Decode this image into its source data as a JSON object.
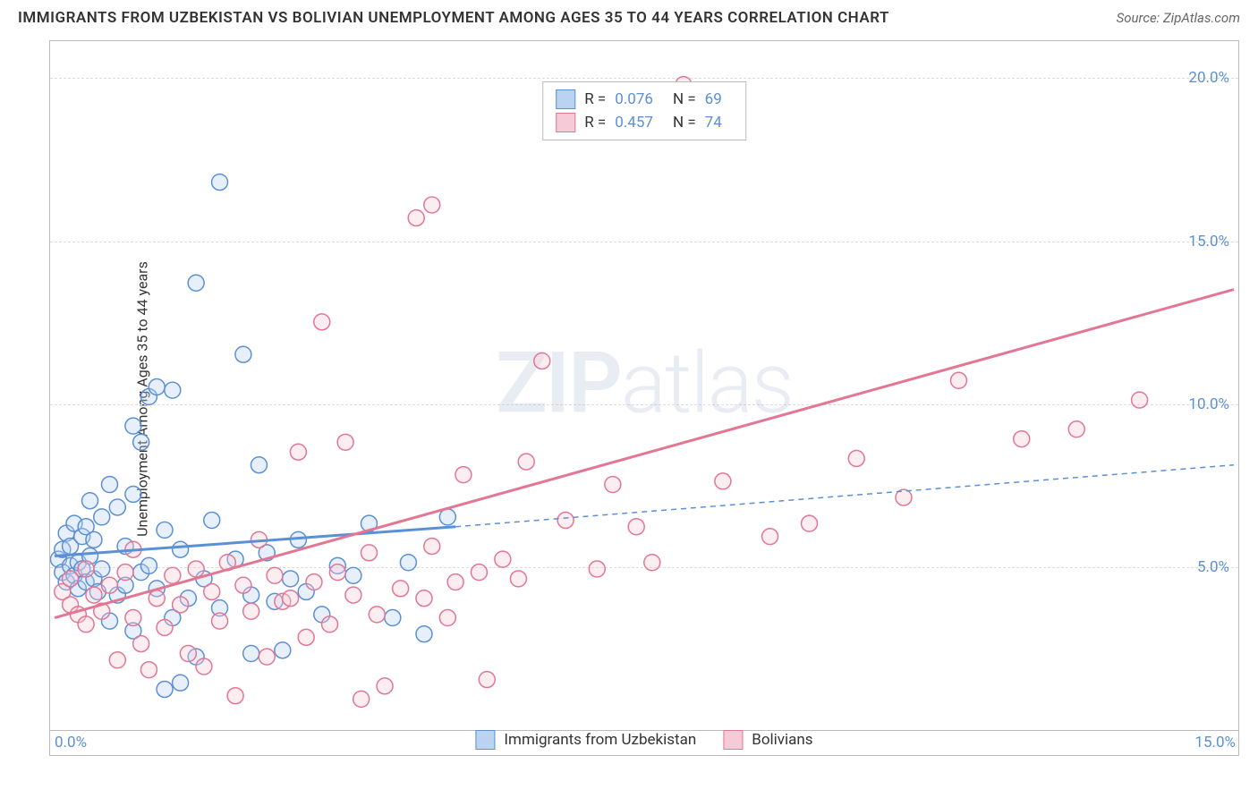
{
  "title": "IMMIGRANTS FROM UZBEKISTAN VS BOLIVIAN UNEMPLOYMENT AMONG AGES 35 TO 44 YEARS CORRELATION CHART",
  "source": "Source: ZipAtlas.com",
  "ylabel": "Unemployment Among Ages 35 to 44 years",
  "watermark_bold": "ZIP",
  "watermark_light": "atlas",
  "chart": {
    "type": "scatter",
    "xlim": [
      0,
      15
    ],
    "ylim": [
      0,
      21
    ],
    "x_ticks": [
      {
        "value": 0,
        "label": "0.0%",
        "align": "left"
      },
      {
        "value": 15,
        "label": "15.0%",
        "align": "right"
      }
    ],
    "y_ticks": [
      {
        "value": 5,
        "label": "5.0%"
      },
      {
        "value": 10,
        "label": "10.0%"
      },
      {
        "value": 15,
        "label": "15.0%"
      },
      {
        "value": 20,
        "label": "20.0%"
      }
    ],
    "grid_lines_y": [
      5,
      10,
      15,
      20
    ],
    "x_baseline_y": 0,
    "background_color": "#ffffff",
    "grid_color": "#dddddd",
    "border_color": "#bbbbbb",
    "marker_radius": 9,
    "marker_stroke_width": 1.5,
    "marker_fill_opacity": 0.35,
    "series": [
      {
        "id": "uzbekistan",
        "label": "Immigrants from Uzbekistan",
        "color": "#5b8fd6",
        "fill": "#b9d3f0",
        "R": "0.076",
        "N": "69",
        "points": [
          [
            0.05,
            5.2
          ],
          [
            0.1,
            4.8
          ],
          [
            0.1,
            5.5
          ],
          [
            0.15,
            4.5
          ],
          [
            0.15,
            6.0
          ],
          [
            0.2,
            5.0
          ],
          [
            0.2,
            5.6
          ],
          [
            0.25,
            4.7
          ],
          [
            0.25,
            6.3
          ],
          [
            0.3,
            5.1
          ],
          [
            0.3,
            4.3
          ],
          [
            0.35,
            5.9
          ],
          [
            0.35,
            4.9
          ],
          [
            0.4,
            6.2
          ],
          [
            0.4,
            4.5
          ],
          [
            0.45,
            7.0
          ],
          [
            0.45,
            5.3
          ],
          [
            0.5,
            4.6
          ],
          [
            0.5,
            5.8
          ],
          [
            0.55,
            4.2
          ],
          [
            0.6,
            4.9
          ],
          [
            0.6,
            6.5
          ],
          [
            0.7,
            7.5
          ],
          [
            0.7,
            3.3
          ],
          [
            0.8,
            4.1
          ],
          [
            0.8,
            6.8
          ],
          [
            0.9,
            4.4
          ],
          [
            0.9,
            5.6
          ],
          [
            1.0,
            9.3
          ],
          [
            1.0,
            7.2
          ],
          [
            1.0,
            3.0
          ],
          [
            1.1,
            4.8
          ],
          [
            1.1,
            8.8
          ],
          [
            1.2,
            10.2
          ],
          [
            1.2,
            5.0
          ],
          [
            1.3,
            4.3
          ],
          [
            1.3,
            10.5
          ],
          [
            1.4,
            6.1
          ],
          [
            1.4,
            1.2
          ],
          [
            1.5,
            10.4
          ],
          [
            1.5,
            3.4
          ],
          [
            1.6,
            5.5
          ],
          [
            1.6,
            1.4
          ],
          [
            1.7,
            4.0
          ],
          [
            1.8,
            2.2
          ],
          [
            1.8,
            13.7
          ],
          [
            1.9,
            4.6
          ],
          [
            2.0,
            6.4
          ],
          [
            2.1,
            16.8
          ],
          [
            2.1,
            3.7
          ],
          [
            2.3,
            5.2
          ],
          [
            2.4,
            11.5
          ],
          [
            2.5,
            4.1
          ],
          [
            2.5,
            2.3
          ],
          [
            2.6,
            8.1
          ],
          [
            2.7,
            5.4
          ],
          [
            2.8,
            3.9
          ],
          [
            2.9,
            2.4
          ],
          [
            3.0,
            4.6
          ],
          [
            3.1,
            5.8
          ],
          [
            3.2,
            4.2
          ],
          [
            3.4,
            3.5
          ],
          [
            3.6,
            5.0
          ],
          [
            3.8,
            4.7
          ],
          [
            4.0,
            6.3
          ],
          [
            4.3,
            3.4
          ],
          [
            4.5,
            5.1
          ],
          [
            4.7,
            2.9
          ],
          [
            5.0,
            6.5
          ]
        ],
        "trend_solid": {
          "x1": 0,
          "y1": 5.3,
          "x2": 5.1,
          "y2": 6.2,
          "width": 3
        },
        "trend_dashed": {
          "x1": 5.1,
          "y1": 6.2,
          "x2": 15,
          "y2": 8.1,
          "width": 1.5,
          "dash": "6,5"
        }
      },
      {
        "id": "bolivians",
        "label": "Bolivians",
        "color": "#e27693",
        "fill": "#f6cad6",
        "R": "0.457",
        "N": "74",
        "points": [
          [
            0.1,
            4.2
          ],
          [
            0.2,
            3.8
          ],
          [
            0.2,
            4.6
          ],
          [
            0.3,
            3.5
          ],
          [
            0.4,
            4.9
          ],
          [
            0.4,
            3.2
          ],
          [
            0.5,
            4.1
          ],
          [
            0.6,
            3.6
          ],
          [
            0.7,
            4.4
          ],
          [
            0.8,
            2.1
          ],
          [
            0.9,
            4.8
          ],
          [
            1.0,
            3.4
          ],
          [
            1.0,
            5.5
          ],
          [
            1.1,
            2.6
          ],
          [
            1.2,
            1.8
          ],
          [
            1.3,
            4.0
          ],
          [
            1.4,
            3.1
          ],
          [
            1.5,
            4.7
          ],
          [
            1.6,
            3.8
          ],
          [
            1.7,
            2.3
          ],
          [
            1.8,
            4.9
          ],
          [
            1.9,
            1.9
          ],
          [
            2.0,
            4.2
          ],
          [
            2.1,
            3.3
          ],
          [
            2.2,
            5.1
          ],
          [
            2.3,
            1.0
          ],
          [
            2.4,
            4.4
          ],
          [
            2.5,
            3.6
          ],
          [
            2.6,
            5.8
          ],
          [
            2.7,
            2.2
          ],
          [
            2.8,
            4.7
          ],
          [
            2.9,
            3.9
          ],
          [
            3.0,
            4.0
          ],
          [
            3.1,
            8.5
          ],
          [
            3.2,
            2.8
          ],
          [
            3.3,
            4.5
          ],
          [
            3.4,
            12.5
          ],
          [
            3.5,
            3.2
          ],
          [
            3.6,
            4.8
          ],
          [
            3.7,
            8.8
          ],
          [
            3.8,
            4.1
          ],
          [
            3.9,
            0.9
          ],
          [
            4.0,
            5.4
          ],
          [
            4.1,
            3.5
          ],
          [
            4.2,
            1.3
          ],
          [
            4.4,
            4.3
          ],
          [
            4.6,
            15.7
          ],
          [
            4.7,
            4.0
          ],
          [
            4.8,
            16.1
          ],
          [
            4.8,
            5.6
          ],
          [
            5.0,
            3.4
          ],
          [
            5.1,
            4.5
          ],
          [
            5.2,
            7.8
          ],
          [
            5.4,
            4.8
          ],
          [
            5.5,
            1.5
          ],
          [
            5.7,
            5.2
          ],
          [
            5.9,
            4.6
          ],
          [
            6.0,
            8.2
          ],
          [
            6.2,
            11.3
          ],
          [
            6.5,
            6.4
          ],
          [
            6.9,
            4.9
          ],
          [
            7.1,
            7.5
          ],
          [
            7.4,
            6.2
          ],
          [
            7.6,
            5.1
          ],
          [
            8.0,
            19.8
          ],
          [
            8.5,
            7.6
          ],
          [
            9.1,
            5.9
          ],
          [
            9.6,
            6.3
          ],
          [
            10.2,
            8.3
          ],
          [
            10.8,
            7.1
          ],
          [
            11.5,
            10.7
          ],
          [
            12.3,
            8.9
          ],
          [
            13.0,
            9.2
          ],
          [
            13.8,
            10.1
          ]
        ],
        "trend_solid": {
          "x1": 0,
          "y1": 3.4,
          "x2": 15,
          "y2": 13.5,
          "width": 3
        }
      }
    ]
  },
  "top_legend_cols": [
    "R =",
    "N ="
  ],
  "colors": {
    "axis_text": "#5b8fd6",
    "text": "#333333"
  }
}
